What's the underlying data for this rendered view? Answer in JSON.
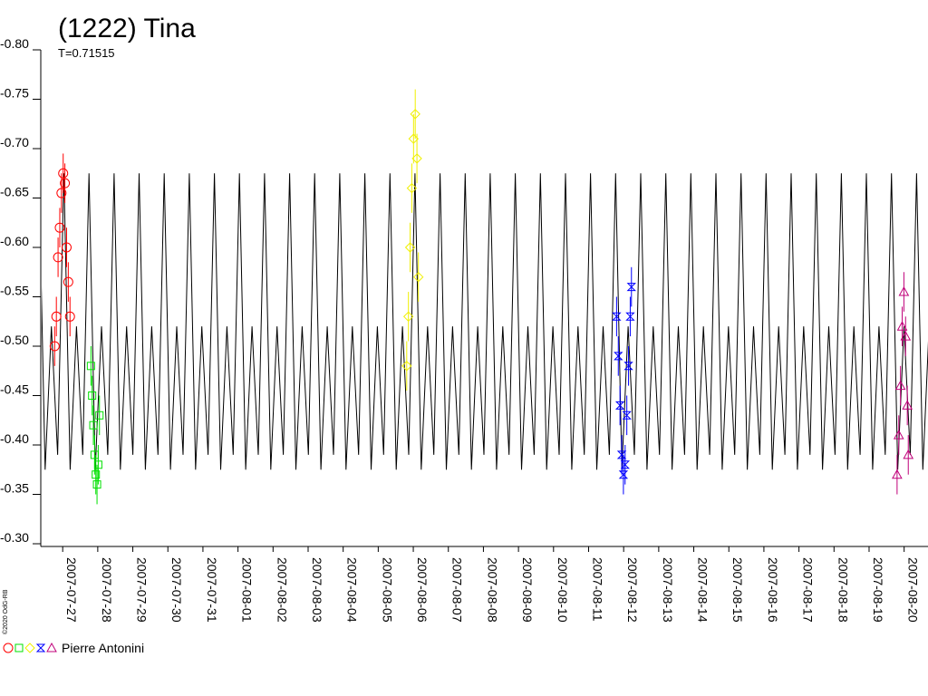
{
  "chart_data": {
    "type": "lightcurve",
    "title": "(1222) Tina",
    "subtitle": "T=0.71515",
    "credit": "©2020 OdG-RB",
    "legend_label": "Pierre Antonini",
    "xlim": [
      "2007-07-26T09:00",
      "2007-08-20T16:20"
    ],
    "xticks": [
      "2007-07-27",
      "2007-07-28",
      "2007-07-29",
      "2007-07-30",
      "2007-07-31",
      "2007-08-01",
      "2007-08-02",
      "2007-08-03",
      "2007-08-04",
      "2007-08-05",
      "2007-08-06",
      "2007-08-07",
      "2007-08-08",
      "2007-08-09",
      "2007-08-10",
      "2007-08-11",
      "2007-08-12",
      "2007-08-13",
      "2007-08-14",
      "2007-08-15",
      "2007-08-16",
      "2007-08-17",
      "2007-08-18",
      "2007-08-19",
      "2007-08-20"
    ],
    "ylim": [
      -0.3,
      -0.8
    ],
    "yticks": [
      {
        "value": -0.8,
        "label": "-0.80"
      },
      -0.75,
      {
        "value": -0.7,
        "label": "-0.70"
      },
      -0.65,
      {
        "value": -0.6,
        "label": "-0.60"
      },
      -0.55,
      {
        "value": -0.5,
        "label": "-0.50"
      },
      -0.45,
      {
        "value": -0.4,
        "label": "-0.40"
      },
      -0.35,
      {
        "value": -0.3,
        "label": "-0.30"
      }
    ],
    "series": [
      {
        "kind": "line",
        "color": "#000000",
        "x": [
          "2007-07-26T07:40",
          "2007-07-26T11:57",
          "2007-07-26T16:15",
          "2007-07-26T20:32",
          "2007-07-27T00:50",
          "2007-07-27T05:07",
          "2007-07-27T09:25",
          "2007-07-27T13:42",
          "2007-07-27T18:00",
          "2007-07-27T22:17",
          "2007-07-28T02:35",
          "2007-07-28T06:52",
          "2007-07-28T11:10",
          "2007-07-28T15:27",
          "2007-07-28T19:45",
          "2007-07-29T00:02",
          "2007-07-29T04:20",
          "2007-07-29T08:37",
          "2007-07-29T12:55",
          "2007-07-29T17:12",
          "2007-07-29T21:30",
          "2007-07-30T01:47",
          "2007-07-30T06:05",
          "2007-07-30T10:22",
          "2007-07-30T14:40",
          "2007-07-30T18:57",
          "2007-07-30T23:15",
          "2007-07-31T03:32",
          "2007-07-31T07:50",
          "2007-07-31T12:07",
          "2007-07-31T16:25",
          "2007-07-31T20:42",
          "2007-08-01T01:00",
          "2007-08-01T05:17",
          "2007-08-01T09:35",
          "2007-08-01T13:52",
          "2007-08-01T18:10",
          "2007-08-01T22:27",
          "2007-08-02T02:45",
          "2007-08-02T07:02",
          "2007-08-02T11:20",
          "2007-08-02T15:37",
          "2007-08-02T19:55",
          "2007-08-03T00:12",
          "2007-08-03T04:30",
          "2007-08-03T08:47",
          "2007-08-03T13:05",
          "2007-08-03T17:22",
          "2007-08-03T21:40",
          "2007-08-04T01:57",
          "2007-08-04T06:15",
          "2007-08-04T10:32",
          "2007-08-04T14:50",
          "2007-08-04T19:07",
          "2007-08-04T23:25",
          "2007-08-05T03:42",
          "2007-08-05T08:00",
          "2007-08-05T12:17",
          "2007-08-05T16:35",
          "2007-08-05T20:52",
          "2007-08-06T01:10",
          "2007-08-06T05:27",
          "2007-08-06T09:45",
          "2007-08-06T14:02",
          "2007-08-06T18:20",
          "2007-08-06T22:37",
          "2007-08-07T02:55",
          "2007-08-07T07:12",
          "2007-08-07T11:30",
          "2007-08-07T15:47",
          "2007-08-07T20:05",
          "2007-08-08T00:22",
          "2007-08-08T04:40",
          "2007-08-08T08:57",
          "2007-08-08T13:15",
          "2007-08-08T17:32",
          "2007-08-08T21:50",
          "2007-08-09T02:07",
          "2007-08-09T06:25",
          "2007-08-09T10:42",
          "2007-08-09T15:00",
          "2007-08-09T19:17",
          "2007-08-09T23:35",
          "2007-08-10T03:52",
          "2007-08-10T08:10",
          "2007-08-10T12:27",
          "2007-08-10T16:45",
          "2007-08-10T21:02",
          "2007-08-11T01:20",
          "2007-08-11T05:37",
          "2007-08-11T09:55",
          "2007-08-11T14:12",
          "2007-08-11T18:30",
          "2007-08-11T22:47",
          "2007-08-12T03:05",
          "2007-08-12T07:22",
          "2007-08-12T11:40",
          "2007-08-12T15:57",
          "2007-08-12T20:15",
          "2007-08-13T00:32",
          "2007-08-13T04:50",
          "2007-08-13T09:07",
          "2007-08-13T13:25",
          "2007-08-13T17:42",
          "2007-08-13T22:00",
          "2007-08-14T02:17",
          "2007-08-14T06:35",
          "2007-08-14T10:52",
          "2007-08-14T15:10",
          "2007-08-14T19:27",
          "2007-08-14T23:45",
          "2007-08-15T04:02",
          "2007-08-15T08:20",
          "2007-08-15T12:37",
          "2007-08-15T16:55",
          "2007-08-15T21:12",
          "2007-08-16T01:30",
          "2007-08-16T05:47",
          "2007-08-16T10:05",
          "2007-08-16T14:22",
          "2007-08-16T18:40",
          "2007-08-16T22:57",
          "2007-08-17T03:15",
          "2007-08-17T07:32",
          "2007-08-17T11:50",
          "2007-08-17T16:07",
          "2007-08-17T20:25",
          "2007-08-18T00:42",
          "2007-08-18T05:00",
          "2007-08-18T09:17",
          "2007-08-18T13:35",
          "2007-08-18T17:52",
          "2007-08-18T22:10",
          "2007-08-19T02:27",
          "2007-08-19T06:45",
          "2007-08-19T11:02",
          "2007-08-19T15:20",
          "2007-08-19T19:37",
          "2007-08-19T23:55",
          "2007-08-20T04:12",
          "2007-08-20T08:30",
          "2007-08-20T12:47",
          "2007-08-20T17:05",
          "2007-08-20T21:22"
        ],
        "values": [
          -0.675,
          -0.375,
          -0.52,
          -0.39,
          -0.675,
          -0.375,
          -0.52,
          -0.39,
          -0.675,
          -0.375,
          -0.52,
          -0.39,
          -0.675,
          -0.375,
          -0.52,
          -0.39,
          -0.675,
          -0.375,
          -0.52,
          -0.39,
          -0.675,
          -0.375,
          -0.52,
          -0.39,
          -0.675,
          -0.375,
          -0.52,
          -0.39,
          -0.675,
          -0.375,
          -0.52,
          -0.39,
          -0.675,
          -0.375,
          -0.52,
          -0.39,
          -0.675,
          -0.375,
          -0.52,
          -0.39,
          -0.675,
          -0.375,
          -0.52,
          -0.39,
          -0.675,
          -0.375,
          -0.52,
          -0.39,
          -0.675,
          -0.375,
          -0.52,
          -0.39,
          -0.675,
          -0.375,
          -0.52,
          -0.39,
          -0.675,
          -0.375,
          -0.52,
          -0.39,
          -0.675,
          -0.375,
          -0.52,
          -0.39,
          -0.675,
          -0.375,
          -0.52,
          -0.39,
          -0.675,
          -0.375,
          -0.52,
          -0.39,
          -0.675,
          -0.375,
          -0.52,
          -0.39,
          -0.675,
          -0.375,
          -0.52,
          -0.39,
          -0.675,
          -0.375,
          -0.52,
          -0.39,
          -0.675,
          -0.375,
          -0.52,
          -0.39,
          -0.675,
          -0.375,
          -0.52,
          -0.39,
          -0.675,
          -0.375,
          -0.52,
          -0.39,
          -0.675,
          -0.375,
          -0.52,
          -0.39,
          -0.675,
          -0.375,
          -0.52,
          -0.39,
          -0.675,
          -0.375,
          -0.52,
          -0.39,
          -0.675,
          -0.375,
          -0.52,
          -0.39,
          -0.675,
          -0.375,
          -0.52,
          -0.39,
          -0.675,
          -0.375,
          -0.52,
          -0.39,
          -0.675,
          -0.375,
          -0.52,
          -0.39,
          -0.675,
          -0.375,
          -0.52,
          -0.39,
          -0.675,
          -0.375,
          -0.52,
          -0.39,
          -0.675,
          -0.375,
          -0.52,
          -0.39,
          -0.675,
          -0.375,
          -0.52,
          -0.39,
          -0.675,
          -0.375,
          -0.52,
          -0.39
        ]
      },
      {
        "kind": "points",
        "marker": "circle",
        "color": "#ff0000",
        "x": [
          "2007-07-26T18:30",
          "2007-07-26T19:40",
          "2007-07-26T20:50",
          "2007-07-26T22:00",
          "2007-07-26T23:10",
          "2007-07-27T00:20",
          "2007-07-27T01:30",
          "2007-07-27T02:40",
          "2007-07-27T03:50",
          "2007-07-27T05:00"
        ],
        "values": [
          -0.5,
          -0.53,
          -0.59,
          -0.62,
          -0.655,
          -0.675,
          -0.665,
          -0.6,
          -0.565,
          -0.53
        ],
        "errors": [
          0.02,
          0.02,
          0.02,
          0.02,
          0.02,
          0.02,
          0.02,
          0.02,
          0.02,
          0.02
        ]
      },
      {
        "kind": "points",
        "marker": "square",
        "color": "#00e000",
        "x": [
          "2007-07-27T19:20",
          "2007-07-27T20:10",
          "2007-07-27T21:00",
          "2007-07-27T21:50",
          "2007-07-27T22:40",
          "2007-07-27T23:30",
          "2007-07-28T00:20",
          "2007-07-28T01:10"
        ],
        "values": [
          -0.48,
          -0.45,
          -0.42,
          -0.39,
          -0.37,
          -0.36,
          -0.38,
          -0.43
        ],
        "errors": [
          0.02,
          0.02,
          0.02,
          0.02,
          0.02,
          0.02,
          0.02,
          0.02
        ]
      },
      {
        "kind": "points",
        "marker": "diamond",
        "color": "#f0f000",
        "x": [
          "2007-08-05T19:30",
          "2007-08-05T20:40",
          "2007-08-05T21:50",
          "2007-08-05T23:00",
          "2007-08-06T00:10",
          "2007-08-06T01:20",
          "2007-08-06T02:30",
          "2007-08-06T03:30"
        ],
        "values": [
          -0.48,
          -0.53,
          -0.6,
          -0.66,
          -0.71,
          -0.735,
          -0.69,
          -0.57
        ],
        "errors": [
          0.025,
          0.025,
          0.025,
          0.025,
          0.025,
          0.025,
          0.025,
          0.025
        ]
      },
      {
        "kind": "points",
        "marker": "bowtie",
        "color": "#0000ff",
        "x": [
          "2007-08-11T19:10",
          "2007-08-11T20:20",
          "2007-08-11T21:30",
          "2007-08-11T22:40",
          "2007-08-11T23:50",
          "2007-08-12T01:00",
          "2007-08-12T02:10",
          "2007-08-12T03:20",
          "2007-08-12T04:30",
          "2007-08-12T05:20"
        ],
        "values": [
          -0.53,
          -0.49,
          -0.44,
          -0.39,
          -0.37,
          -0.38,
          -0.43,
          -0.48,
          -0.53,
          -0.56
        ],
        "errors": [
          0.02,
          0.02,
          0.02,
          0.02,
          0.02,
          0.02,
          0.02,
          0.02,
          0.02,
          0.02
        ]
      },
      {
        "kind": "points",
        "marker": "triangle",
        "color": "#c0007a",
        "x": [
          "2007-08-19T19:10",
          "2007-08-19T20:20",
          "2007-08-19T21:30",
          "2007-08-19T22:40",
          "2007-08-19T23:50",
          "2007-08-20T01:00",
          "2007-08-20T02:10",
          "2007-08-20T02:50"
        ],
        "values": [
          -0.37,
          -0.41,
          -0.46,
          -0.52,
          -0.555,
          -0.51,
          -0.44,
          -0.39
        ],
        "errors": [
          0.02,
          0.02,
          0.02,
          0.02,
          0.02,
          0.02,
          0.02,
          0.02
        ]
      }
    ]
  }
}
